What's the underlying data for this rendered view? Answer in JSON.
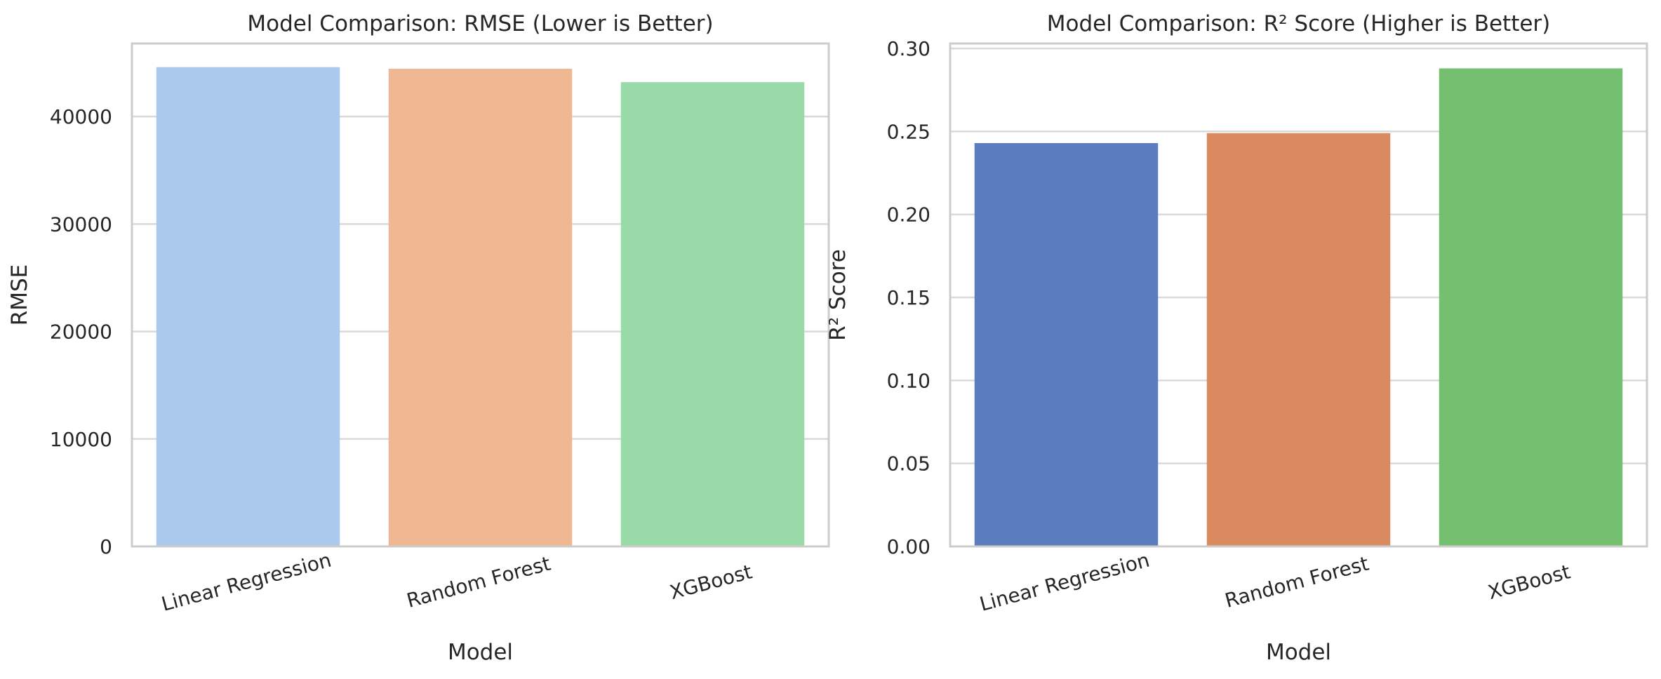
{
  "chart_data": [
    {
      "type": "bar",
      "title": "Model Comparison: RMSE (Lower is Better)",
      "xlabel": "Model",
      "ylabel": "RMSE",
      "categories": [
        "Linear Regression",
        "Random Forest",
        "XGBoost"
      ],
      "values": [
        44600,
        44450,
        43200
      ],
      "ylim": [
        0,
        46800
      ],
      "yticks": [
        0,
        10000,
        20000,
        30000,
        40000
      ],
      "ytick_labels": [
        "0",
        "10000",
        "20000",
        "30000",
        "40000"
      ],
      "colors": [
        "#abc9ed",
        "#f0b793",
        "#99daa9"
      ],
      "grid": true,
      "xtick_rotation": "slanted"
    },
    {
      "type": "bar",
      "title": "Model Comparison: R² Score (Higher is Better)",
      "xlabel": "Model",
      "ylabel": "R² Score",
      "categories": [
        "Linear Regression",
        "Random Forest",
        "XGBoost"
      ],
      "values": [
        0.243,
        0.249,
        0.288
      ],
      "ylim": [
        0,
        0.303
      ],
      "yticks": [
        0.0,
        0.05,
        0.1,
        0.15,
        0.2,
        0.25,
        0.3
      ],
      "ytick_labels": [
        "0.00",
        "0.05",
        "0.10",
        "0.15",
        "0.20",
        "0.25",
        "0.30"
      ],
      "colors": [
        "#5b7cbf",
        "#d98b5f",
        "#74bf70"
      ],
      "grid": true,
      "xtick_rotation": "slanted"
    }
  ]
}
